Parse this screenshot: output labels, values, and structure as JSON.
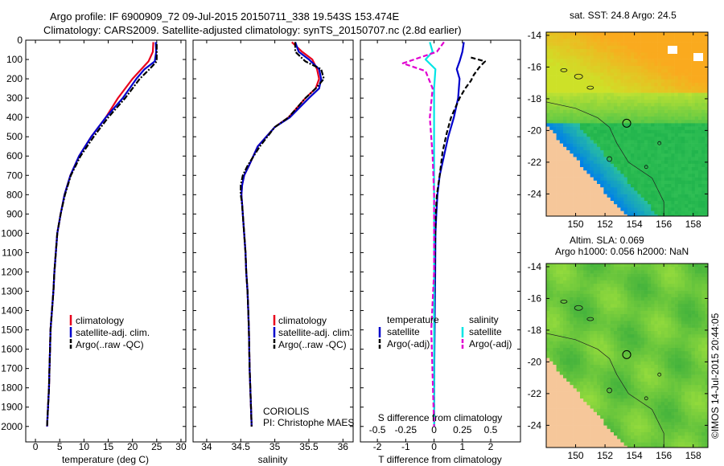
{
  "header": {
    "line1": "Argo profile: IF 6900909_72 09-Jul-2015 20150711_338 19.543S 153.474E",
    "line2": "Climatology: CARS2009. Satellite-adjusted climatology: synTS_20150707.nc (2.8d earlier)"
  },
  "footer": {
    "credit": "©IMOS 14-Jul-2015 20:44:05",
    "institution": "CORIOLIS",
    "pi": "PI: Christophe MAES"
  },
  "colors": {
    "climatology": "#e8001c",
    "satellite": "#0000cc",
    "argo": "#000000",
    "sat_salinity": "#00e5e5",
    "argo_salinity": "#e000d0",
    "land": "#f6c79a"
  },
  "chart_data": [
    {
      "id": "temperature",
      "type": "line",
      "xlabel": "temperature (deg C)",
      "ylabel": "",
      "xlim": [
        -2,
        31
      ],
      "ylim": [
        2080,
        0
      ],
      "xticks": [
        0,
        5,
        10,
        15,
        20,
        25,
        30
      ],
      "yticks": [
        0,
        100,
        200,
        300,
        400,
        500,
        600,
        700,
        800,
        900,
        1000,
        1100,
        1200,
        1300,
        1400,
        1500,
        1600,
        1700,
        1800,
        1900,
        2000
      ],
      "legend": [
        "climatology",
        "satellite-adj. clim.",
        "Argo(..raw -QC)"
      ],
      "series": [
        {
          "name": "climatology",
          "style": "solid",
          "color": "#e8001c",
          "points": [
            [
              24.3,
              10
            ],
            [
              24.2,
              60
            ],
            [
              23.3,
              110
            ],
            [
              20,
              200
            ],
            [
              17,
              300
            ],
            [
              14.5,
              400
            ],
            [
              11.5,
              500
            ],
            [
              9,
              600
            ],
            [
              7.2,
              700
            ],
            [
              6,
              800
            ],
            [
              5.2,
              900
            ],
            [
              4.5,
              1000
            ],
            [
              4.2,
              1100
            ],
            [
              3.9,
              1200
            ],
            [
              3.7,
              1300
            ],
            [
              3.4,
              1400
            ],
            [
              3.1,
              1500
            ],
            [
              3,
              1600
            ],
            [
              2.9,
              1700
            ],
            [
              2.8,
              1800
            ],
            [
              2.6,
              1900
            ],
            [
              2.4,
              2000
            ]
          ]
        },
        {
          "name": "satellite",
          "style": "solid",
          "color": "#0000cc",
          "points": [
            [
              24.8,
              10
            ],
            [
              24.9,
              60
            ],
            [
              24.6,
              110
            ],
            [
              22.5,
              150
            ],
            [
              20.8,
              200
            ],
            [
              18,
              300
            ],
            [
              14.5,
              400
            ],
            [
              11.5,
              500
            ],
            [
              9,
              600
            ],
            [
              7.2,
              700
            ],
            [
              6,
              800
            ],
            [
              5.2,
              900
            ],
            [
              4.5,
              1000
            ],
            [
              4.2,
              1100
            ],
            [
              3.9,
              1200
            ],
            [
              3.7,
              1300
            ],
            [
              3.4,
              1400
            ],
            [
              3.1,
              1500
            ],
            [
              3,
              1600
            ],
            [
              2.9,
              1700
            ],
            [
              2.8,
              1800
            ],
            [
              2.6,
              1900
            ],
            [
              2.4,
              2000
            ]
          ]
        },
        {
          "name": "argo",
          "style": "dashdot",
          "color": "#000000",
          "points": [
            [
              25,
              20
            ],
            [
              25,
              110
            ],
            [
              23.5,
              150
            ],
            [
              21.5,
              200
            ],
            [
              18.5,
              300
            ],
            [
              15,
              400
            ],
            [
              12,
              500
            ],
            [
              9.3,
              600
            ],
            [
              7.3,
              700
            ],
            [
              6.1,
              800
            ],
            [
              5.2,
              900
            ],
            [
              4.5,
              1000
            ],
            [
              4.2,
              1100
            ],
            [
              3.9,
              1200
            ],
            [
              3.7,
              1300
            ],
            [
              3.4,
              1400
            ],
            [
              3.1,
              1500
            ],
            [
              3,
              1600
            ],
            [
              2.9,
              1700
            ],
            [
              2.8,
              1800
            ],
            [
              2.6,
              1900
            ],
            [
              2.4,
              2000
            ]
          ]
        }
      ]
    },
    {
      "id": "salinity",
      "type": "line",
      "xlabel": "salinity",
      "xlim": [
        33.8,
        36.15
      ],
      "ylim": [
        2080,
        0
      ],
      "xticks": [
        34,
        34.5,
        35,
        35.5,
        36
      ],
      "legend": [
        "climatology",
        "satellite-adj. clim.",
        "Argo(..raw -QC)"
      ],
      "series": [
        {
          "name": "climatology",
          "style": "solid",
          "color": "#e8001c",
          "points": [
            [
              35.25,
              10
            ],
            [
              35.4,
              60
            ],
            [
              35.55,
              100
            ],
            [
              35.62,
              150
            ],
            [
              35.65,
              200
            ],
            [
              35.6,
              250
            ],
            [
              35.45,
              300
            ],
            [
              35.2,
              400
            ],
            [
              35,
              450
            ],
            [
              34.75,
              550
            ],
            [
              34.62,
              650
            ],
            [
              34.55,
              700
            ],
            [
              34.52,
              750
            ],
            [
              34.51,
              800
            ],
            [
              34.52,
              850
            ],
            [
              34.53,
              900
            ],
            [
              34.55,
              1000
            ],
            [
              34.57,
              1100
            ],
            [
              34.58,
              1200
            ],
            [
              34.6,
              1300
            ],
            [
              34.61,
              1400
            ],
            [
              34.62,
              1500
            ],
            [
              34.63,
              1700
            ],
            [
              34.65,
              1900
            ],
            [
              34.66,
              2000
            ]
          ]
        },
        {
          "name": "satellite",
          "style": "solid",
          "color": "#0000cc",
          "points": [
            [
              35.3,
              10
            ],
            [
              35.35,
              60
            ],
            [
              35.5,
              100
            ],
            [
              35.65,
              150
            ],
            [
              35.68,
              200
            ],
            [
              35.65,
              250
            ],
            [
              35.5,
              300
            ],
            [
              35.22,
              400
            ],
            [
              35,
              450
            ],
            [
              34.75,
              550
            ],
            [
              34.62,
              650
            ],
            [
              34.55,
              700
            ],
            [
              34.52,
              750
            ],
            [
              34.51,
              800
            ],
            [
              34.52,
              850
            ],
            [
              34.53,
              900
            ],
            [
              34.55,
              1000
            ],
            [
              34.57,
              1100
            ],
            [
              34.58,
              1200
            ],
            [
              34.6,
              1300
            ],
            [
              34.61,
              1400
            ],
            [
              34.62,
              1500
            ],
            [
              34.63,
              1700
            ],
            [
              34.65,
              1900
            ],
            [
              34.66,
              2000
            ]
          ]
        },
        {
          "name": "argo",
          "style": "dashdot",
          "color": "#000000",
          "points": [
            [
              35.3,
              10
            ],
            [
              35.3,
              60
            ],
            [
              35.45,
              110
            ],
            [
              35.68,
              150
            ],
            [
              35.72,
              200
            ],
            [
              35.6,
              250
            ],
            [
              35.45,
              300
            ],
            [
              35.2,
              400
            ],
            [
              35,
              450
            ],
            [
              34.78,
              550
            ],
            [
              34.6,
              650
            ],
            [
              34.53,
              700
            ],
            [
              34.5,
              750
            ],
            [
              34.5,
              800
            ],
            [
              34.52,
              850
            ],
            [
              34.53,
              900
            ],
            [
              34.55,
              1000
            ],
            [
              34.57,
              1100
            ],
            [
              34.58,
              1200
            ],
            [
              34.6,
              1300
            ],
            [
              34.61,
              1400
            ],
            [
              34.62,
              1500
            ],
            [
              34.63,
              1700
            ],
            [
              34.65,
              1900
            ],
            [
              34.66,
              2000
            ]
          ]
        }
      ]
    },
    {
      "id": "difference",
      "type": "line",
      "xlabel": "T difference from climatology",
      "toplabel": "S difference from climatology",
      "xlim": [
        -2.6,
        3.05
      ],
      "ylim": [
        2080,
        0
      ],
      "xticks": [
        -2,
        -1,
        0,
        1,
        2
      ],
      "xticks_top": [
        -0.5,
        -0.25,
        0,
        0.25,
        0.5
      ],
      "legend_headers": [
        "temperature",
        "salinity"
      ],
      "legend": [
        "satellite",
        "Argo(-adj)",
        "satellite",
        "Argo(-adj)"
      ],
      "series": [
        {
          "name": "T satellite",
          "style": "solid",
          "color": "#0000cc",
          "points": [
            [
              1.05,
              10
            ],
            [
              1.0,
              60
            ],
            [
              0.9,
              110
            ],
            [
              0.8,
              150
            ],
            [
              0.9,
              200
            ],
            [
              0.85,
              300
            ],
            [
              0.7,
              400
            ],
            [
              0.5,
              500
            ],
            [
              0.35,
              600
            ],
            [
              0.2,
              700
            ],
            [
              0.12,
              800
            ],
            [
              0.08,
              900
            ],
            [
              0.05,
              1000
            ],
            [
              0.04,
              1200
            ],
            [
              0.02,
              1500
            ],
            [
              0,
              1800
            ],
            [
              0,
              2000
            ]
          ]
        },
        {
          "name": "T argo",
          "style": "dashed",
          "color": "#000000",
          "points": [
            [
              1.3,
              90
            ],
            [
              1.8,
              110
            ],
            [
              1.6,
              140
            ],
            [
              1.4,
              180
            ],
            [
              1.3,
              210
            ],
            [
              1.1,
              250
            ],
            [
              0.9,
              300
            ],
            [
              0.6,
              400
            ],
            [
              0.45,
              480
            ],
            [
              0.3,
              580
            ],
            [
              0.2,
              700
            ],
            [
              0.1,
              800
            ],
            [
              0.06,
              900
            ],
            [
              0.03,
              1100
            ],
            [
              0,
              1500
            ],
            [
              0,
              2000
            ]
          ]
        },
        {
          "name": "S satellite",
          "style": "solid",
          "color": "#00e5e5",
          "points": [
            [
              -0.15,
              10
            ],
            [
              -0.05,
              60
            ],
            [
              -0.3,
              100
            ],
            [
              0.05,
              150
            ],
            [
              0,
              250
            ],
            [
              0,
              500
            ],
            [
              0,
              800
            ],
            [
              0,
              1200
            ],
            [
              0,
              1600
            ],
            [
              0,
              2000
            ]
          ]
        },
        {
          "name": "S argo",
          "style": "dashed",
          "color": "#e000d0",
          "points": [
            [
              0.35,
              10
            ],
            [
              0.1,
              60
            ],
            [
              -1.1,
              120
            ],
            [
              -0.3,
              160
            ],
            [
              -0.05,
              250
            ],
            [
              -0.15,
              400
            ],
            [
              -0.05,
              600
            ],
            [
              0,
              800
            ],
            [
              0,
              1200
            ],
            [
              -0.1,
              1500
            ],
            [
              0,
              2000
            ]
          ]
        }
      ]
    },
    {
      "id": "sst-map",
      "type": "heatmap",
      "title": "sat. SST: 24.8  Argo: 24.5",
      "xlim": [
        148,
        159
      ],
      "ylim": [
        -25.4,
        -13.8
      ],
      "xticks": [
        150,
        152,
        154,
        156,
        158
      ],
      "yticks": [
        -14,
        -16,
        -18,
        -20,
        -22,
        -24
      ],
      "marker": {
        "lon": 153.474,
        "lat": -19.543
      }
    },
    {
      "id": "sla-map",
      "type": "heatmap",
      "title": "Altim. SLA: 0.069",
      "subtitle": "Argo h1000: 0.056  h2000: NaN",
      "xlim": [
        148,
        159
      ],
      "ylim": [
        -25.4,
        -13.8
      ],
      "xticks": [
        150,
        152,
        154,
        156,
        158
      ],
      "yticks": [
        -14,
        -16,
        -18,
        -20,
        -22,
        -24
      ],
      "marker": {
        "lon": 153.474,
        "lat": -19.543
      }
    }
  ]
}
